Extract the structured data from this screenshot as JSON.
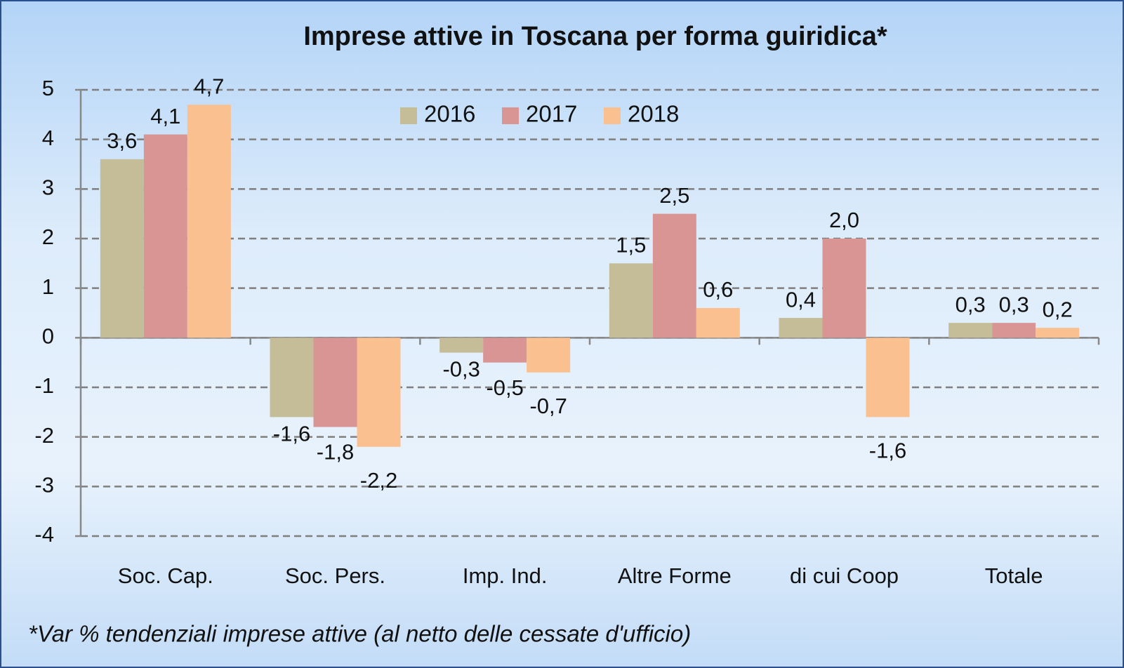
{
  "chart_data": {
    "type": "bar",
    "title": "Imprese attive in Toscana per forma guiridica*",
    "footnote": "*Var % tendenziali imprese attive (al netto delle cessate d'ufficio)",
    "categories": [
      "Soc. Cap.",
      "Soc. Pers.",
      "Imp. Ind.",
      "Altre Forme",
      "di cui Coop",
      "Totale"
    ],
    "series": [
      {
        "name": "2016",
        "color": "#c4bd97",
        "values": [
          3.6,
          -1.6,
          -0.3,
          1.5,
          0.4,
          0.3
        ],
        "value_labels": [
          "3,6",
          "-1,6",
          "-0,3",
          "1,5",
          "0,4",
          "0,3"
        ]
      },
      {
        "name": "2017",
        "color": "#d99594",
        "values": [
          4.1,
          -1.8,
          -0.5,
          2.5,
          2.0,
          0.3
        ],
        "value_labels": [
          "4,1",
          "-1,8",
          "-0,5",
          "2,5",
          "2,0",
          "0,3"
        ]
      },
      {
        "name": "2018",
        "color": "#fac090",
        "values": [
          4.7,
          -2.2,
          -0.7,
          0.6,
          -1.6,
          0.2
        ],
        "value_labels": [
          "4,7",
          "-2,2",
          "-0,7",
          "0,6",
          "-1,6",
          "0,2"
        ]
      }
    ],
    "ylim": [
      -4,
      5
    ],
    "yticks": [
      -4,
      -3,
      -2,
      -1,
      0,
      1,
      2,
      3,
      4,
      5
    ],
    "grid": true,
    "legend": "top"
  }
}
